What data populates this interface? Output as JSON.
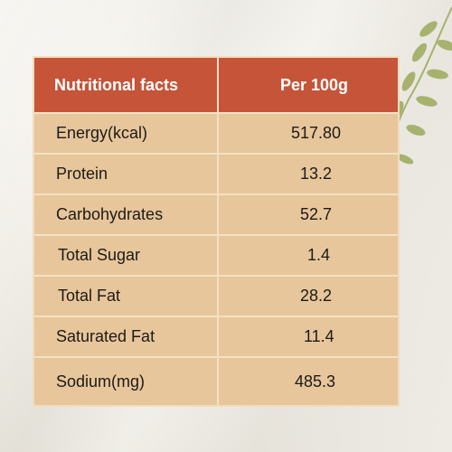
{
  "table": {
    "header": {
      "name": "Nutritional facts",
      "value": "Per 100g"
    },
    "rows": [
      {
        "name": "Energy(kcal)",
        "value": "517.80"
      },
      {
        "name": "Protein",
        "value": "13.2"
      },
      {
        "name": "Carbohydrates",
        "value": "52.7"
      },
      {
        "name": "Total Sugar",
        "value": "1.4"
      },
      {
        "name": "Total Fat",
        "value": "28.2"
      },
      {
        "name": "Saturated Fat",
        "value": "11.4"
      },
      {
        "name": "Sodium(mg)",
        "value": "485.3"
      }
    ]
  },
  "colors": {
    "header_bg": "#c55438",
    "table_bg": "#e7c69b",
    "grid_line": "#f3e2c6",
    "branch": "#a6b26e"
  },
  "decoration": {
    "branch_icon": "leafy-branch-icon"
  }
}
